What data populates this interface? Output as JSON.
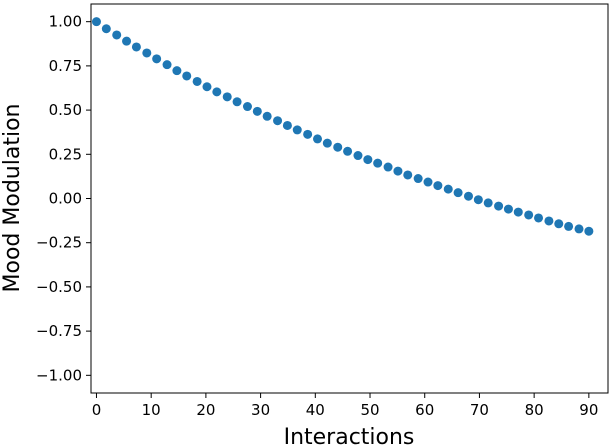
{
  "chart_data": {
    "type": "scatter",
    "title": "",
    "xlabel": "Interactions",
    "ylabel": "Mood Modulation",
    "xlim": [
      -1,
      93.5
    ],
    "ylim": [
      -1.1,
      1.1
    ],
    "x_ticks": [
      0,
      10,
      20,
      30,
      40,
      50,
      60,
      70,
      80,
      90
    ],
    "x_tick_labels": [
      "0",
      "10",
      "20",
      "30",
      "40",
      "50",
      "60",
      "70",
      "80",
      "90"
    ],
    "y_ticks": [
      1.0,
      0.75,
      0.5,
      0.25,
      0.0,
      -0.25,
      -0.5,
      -0.75,
      -1.0
    ],
    "y_tick_labels": [
      "1.00",
      "0.75",
      "0.50",
      "0.25",
      "0.00",
      "−0.25",
      "−0.50",
      "−0.75",
      "−1.00"
    ],
    "grid": false,
    "legend": "none",
    "color": "#1f77b4",
    "series": [
      {
        "x": [
          0,
          1.8,
          3.7,
          5.5,
          7.3,
          9.2,
          11.0,
          12.9,
          14.7,
          16.5,
          18.4,
          20.2,
          22.0,
          23.9,
          25.7,
          27.6,
          29.4,
          31.2,
          33.1,
          34.9,
          36.7,
          38.6,
          40.4,
          42.2,
          44.1,
          45.9,
          47.8,
          49.6,
          51.4,
          53.3,
          55.1,
          56.9,
          58.8,
          60.6,
          62.4,
          64.3,
          66.1,
          68.0,
          69.8,
          71.6,
          73.5,
          75.3,
          77.1,
          79.0,
          80.8,
          82.7,
          84.5,
          86.3,
          88.2,
          90.0
        ],
        "y": [
          1.0,
          0.96,
          0.925,
          0.89,
          0.857,
          0.823,
          0.79,
          0.757,
          0.723,
          0.693,
          0.662,
          0.632,
          0.603,
          0.575,
          0.547,
          0.52,
          0.493,
          0.465,
          0.44,
          0.413,
          0.388,
          0.363,
          0.337,
          0.313,
          0.29,
          0.267,
          0.243,
          0.22,
          0.2,
          0.178,
          0.155,
          0.133,
          0.113,
          0.093,
          0.073,
          0.053,
          0.033,
          0.013,
          -0.007,
          -0.025,
          -0.043,
          -0.06,
          -0.077,
          -0.093,
          -0.11,
          -0.127,
          -0.143,
          -0.158,
          -0.172,
          -0.185
        ]
      }
    ]
  }
}
